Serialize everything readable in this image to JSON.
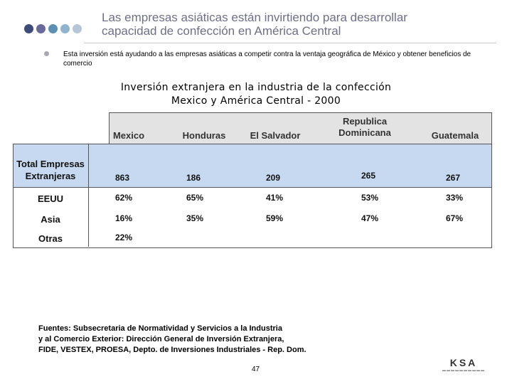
{
  "header": {
    "title_line1": "Las empresas asiáticas están invirtiendo para desarrollar",
    "title_line2": "capacidad de confección en América Central",
    "dot_colors": [
      "#3e4a78",
      "#6a6a9a",
      "#5c8fb4",
      "#8fb4d0",
      "#b8c4d8"
    ]
  },
  "bullet": {
    "text": "Esta inversión está ayudando a las empresas asiáticas a competir contra la ventaja geográfica de México y obtener beneficios de comercio"
  },
  "chart": {
    "title_line1": "Inversión extranjera en la industria de la confección",
    "title_line2": "Mexico y América Central - 2000"
  },
  "table": {
    "columns": [
      "Mexico",
      "Honduras",
      "El Salvador",
      "Republica Dominicana",
      "Guatemala"
    ],
    "col_lines": [
      [
        "Mexico"
      ],
      [
        "Honduras"
      ],
      [
        "El Salvador"
      ],
      [
        "Republica",
        "Dominicana"
      ],
      [
        "Guatemala"
      ]
    ],
    "rows": [
      {
        "label": "Total Empresas Extranjeras",
        "label_lines": [
          "Total Empresas",
          "Extranjeras"
        ],
        "values": [
          "863",
          "186",
          "209",
          "265",
          "267"
        ]
      },
      {
        "label": "EEUU",
        "values": [
          "62%",
          "65%",
          "41%",
          "53%",
          "33%"
        ]
      },
      {
        "label": "Asia",
        "values": [
          "16%",
          "35%",
          "59%",
          "47%",
          "67%"
        ]
      },
      {
        "label": "Otras",
        "values": [
          "22%",
          "",
          "",
          "",
          ""
        ]
      }
    ]
  },
  "sources": {
    "line1": "Fuentes: Subsecretaria de Normatividad y Servicios a la Industria",
    "line2": "y al Comercio Exterior: Dirección General de Inversión Extranjera,",
    "line3": "FIDE, VESTEX, PROESA, Depto. de Inversiones Industriales - Rep. Dom."
  },
  "footer": {
    "page_number": "47",
    "logo": "KSA"
  }
}
